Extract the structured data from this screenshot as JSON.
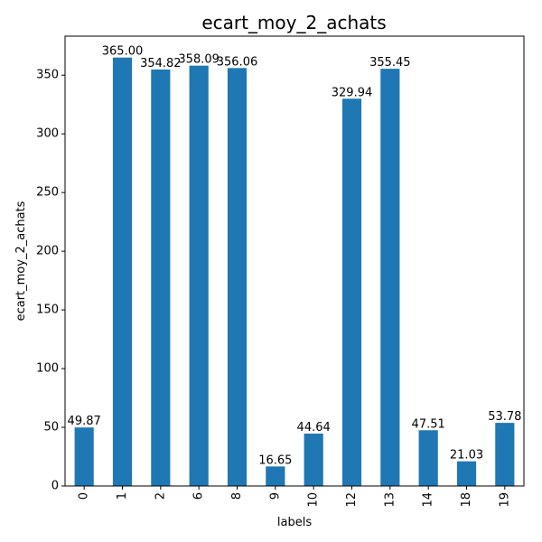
{
  "chart_data": {
    "type": "bar",
    "title": "ecart_moy_2_achats",
    "xlabel": "labels",
    "ylabel": "ecart_moy_2_achats",
    "categories": [
      "0",
      "1",
      "2",
      "6",
      "8",
      "9",
      "10",
      "12",
      "13",
      "14",
      "18",
      "19"
    ],
    "values": [
      49.87,
      365.0,
      354.82,
      358.09,
      356.06,
      16.65,
      44.64,
      329.94,
      355.45,
      47.51,
      21.03,
      53.78
    ],
    "data_labels": [
      "49.87",
      "365.00",
      "354.82",
      "358.09",
      "356.06",
      "16.65",
      "44.64",
      "329.94",
      "355.45",
      "47.51",
      "21.03",
      "53.78"
    ],
    "ylim": [
      0,
      383.25
    ],
    "yticks": [
      0,
      50,
      100,
      150,
      200,
      250,
      300,
      350
    ],
    "grid": false,
    "legend": "none",
    "bar_color": "#1f77b4"
  }
}
